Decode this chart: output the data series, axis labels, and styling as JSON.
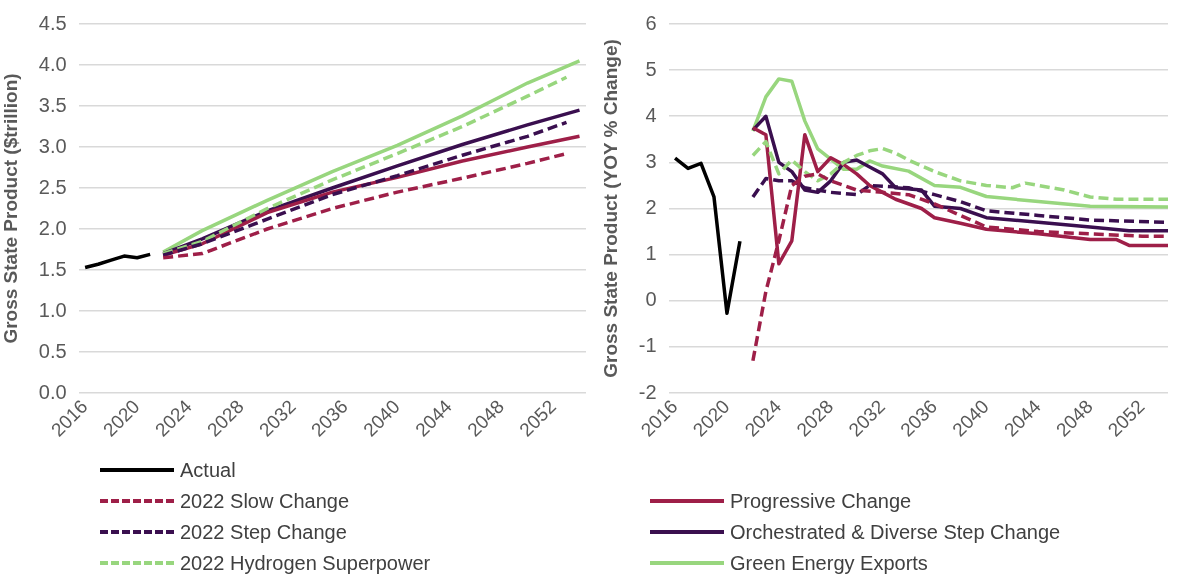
{
  "chart_data": [
    {
      "type": "line",
      "ylabel": "Gross State Product ($trillion)",
      "xlim": [
        2015.5,
        2054.5
      ],
      "xticks": [
        2016,
        2020,
        2024,
        2028,
        2032,
        2036,
        2040,
        2044,
        2048,
        2052
      ],
      "ylim": [
        0,
        4.5
      ],
      "yticks": [
        {
          "value": 0,
          "label": "0.0"
        },
        0.5,
        {
          "value": 1,
          "label": "1.0"
        },
        1.5,
        {
          "value": 2,
          "label": "2.0"
        },
        2.5,
        {
          "value": 3,
          "label": "3.0"
        },
        3.5,
        {
          "value": 4,
          "label": "4.0"
        },
        4.5
      ],
      "grid": "y",
      "legend": "bottom",
      "marker": "none",
      "series": [
        {
          "name": "Actual",
          "color": "#000000",
          "line_style": "solid",
          "x": [
            2016,
            2017,
            2018,
            2019,
            2020,
            2021
          ],
          "values": [
            1.53,
            1.57,
            1.62,
            1.67,
            1.65,
            1.69
          ]
        },
        {
          "name": "2022 Slow Change",
          "color": "#9e1f48",
          "line_style": "dashed",
          "x": [
            2022,
            2025,
            2030,
            2035,
            2040,
            2045,
            2050,
            2053
          ],
          "values": [
            1.65,
            1.7,
            2.0,
            2.25,
            2.45,
            2.62,
            2.8,
            2.92
          ]
        },
        {
          "name": "2022 Step Change",
          "color": "#3a0f4f",
          "line_style": "dashed",
          "x": [
            2022,
            2025,
            2030,
            2035,
            2040,
            2045,
            2050,
            2053
          ],
          "values": [
            1.68,
            1.82,
            2.12,
            2.42,
            2.65,
            2.9,
            3.13,
            3.3
          ]
        },
        {
          "name": "2022 Hydrogen Superpower",
          "color": "#98d67e",
          "line_style": "dashed",
          "x": [
            2022,
            2025,
            2030,
            2035,
            2040,
            2045,
            2050,
            2053
          ],
          "values": [
            1.7,
            1.85,
            2.25,
            2.6,
            2.92,
            3.25,
            3.62,
            3.85
          ]
        },
        {
          "name": "Progressive Change",
          "color": "#9e1f48",
          "line_style": "solid",
          "x": [
            2022,
            2025,
            2030,
            2035,
            2040,
            2045,
            2050,
            2054
          ],
          "values": [
            1.68,
            1.82,
            2.2,
            2.45,
            2.63,
            2.83,
            3.0,
            3.13
          ]
        },
        {
          "name": "Orchestrated & Diverse Step Change",
          "color": "#3a0f4f",
          "line_style": "solid",
          "x": [
            2022,
            2025,
            2030,
            2035,
            2040,
            2045,
            2050,
            2054
          ],
          "values": [
            1.7,
            1.88,
            2.22,
            2.5,
            2.77,
            3.03,
            3.27,
            3.45
          ]
        },
        {
          "name": "Green Energy Exports",
          "color": "#98d67e",
          "line_style": "solid",
          "x": [
            2022,
            2025,
            2030,
            2035,
            2040,
            2045,
            2050,
            2054
          ],
          "values": [
            1.72,
            1.98,
            2.35,
            2.7,
            3.02,
            3.38,
            3.78,
            4.05
          ]
        }
      ]
    },
    {
      "type": "line",
      "ylabel": "Gross State Product (YOY % Change)",
      "xlim": [
        2015.5,
        2054
      ],
      "xticks": [
        2016,
        2020,
        2024,
        2028,
        2032,
        2036,
        2040,
        2044,
        2048,
        2052
      ],
      "ylim": [
        -2,
        6
      ],
      "yticks": [
        -2,
        -1,
        0,
        1,
        2,
        3,
        4,
        5,
        6
      ],
      "grid": "y",
      "marker": "none",
      "series": [
        {
          "color": "#000000",
          "line_style": "solid",
          "x": [
            2016,
            2017,
            2018,
            2019,
            2020,
            2021
          ],
          "values": [
            3.09,
            2.87,
            2.98,
            2.25,
            -0.27,
            1.29
          ]
        },
        {
          "color": "#9e1f48",
          "line_style": "dashed",
          "x": [
            2022,
            2023,
            2024,
            2025,
            2026,
            2027,
            2028,
            2030,
            2032,
            2034,
            2036,
            2038,
            2040,
            2044,
            2048,
            2052,
            2054
          ],
          "values": [
            -1.3,
            0.2,
            1.3,
            2.5,
            2.7,
            2.75,
            2.6,
            2.4,
            2.35,
            2.3,
            2.1,
            1.85,
            1.6,
            1.5,
            1.45,
            1.4,
            1.4
          ]
        },
        {
          "color": "#3a0f4f",
          "line_style": "dashed",
          "x": [
            2022,
            2023,
            2024,
            2025,
            2026,
            2028,
            2030,
            2031,
            2034,
            2036,
            2038,
            2040,
            2044,
            2048,
            2054
          ],
          "values": [
            2.25,
            2.65,
            2.6,
            2.6,
            2.45,
            2.35,
            2.3,
            2.5,
            2.45,
            2.3,
            2.15,
            1.95,
            1.85,
            1.75,
            1.7
          ]
        },
        {
          "color": "#98d67e",
          "line_style": "dashed",
          "x": [
            2022,
            2023,
            2024,
            2025,
            2026,
            2027,
            2028,
            2029,
            2030,
            2031,
            2032,
            2033,
            2034,
            2036,
            2038,
            2040,
            2042,
            2043,
            2046,
            2048,
            2050,
            2054
          ],
          "values": [
            3.15,
            3.45,
            2.75,
            3.05,
            2.8,
            2.6,
            2.75,
            3.0,
            3.15,
            3.25,
            3.3,
            3.2,
            3.05,
            2.8,
            2.6,
            2.5,
            2.45,
            2.55,
            2.4,
            2.25,
            2.2,
            2.2
          ]
        },
        {
          "color": "#9e1f48",
          "line_style": "solid",
          "x": [
            2022,
            2023,
            2024,
            2025,
            2026,
            2027,
            2028,
            2029,
            2030,
            2031,
            2032,
            2033,
            2035,
            2036,
            2038,
            2040,
            2044,
            2048,
            2050,
            2051,
            2054
          ],
          "values": [
            3.75,
            3.6,
            0.8,
            1.3,
            3.6,
            2.8,
            3.1,
            2.95,
            2.75,
            2.5,
            2.35,
            2.2,
            2.0,
            1.8,
            1.68,
            1.55,
            1.45,
            1.33,
            1.33,
            1.2,
            1.2
          ]
        },
        {
          "color": "#3a0f4f",
          "line_style": "solid",
          "x": [
            2022,
            2023,
            2024,
            2025,
            2026,
            2027,
            2028,
            2029,
            2030,
            2031,
            2032,
            2033,
            2035,
            2036,
            2038,
            2040,
            2044,
            2048,
            2051,
            2054
          ],
          "values": [
            3.7,
            4.0,
            3.0,
            2.8,
            2.4,
            2.35,
            2.6,
            3.0,
            3.05,
            2.9,
            2.75,
            2.45,
            2.4,
            2.05,
            2.0,
            1.8,
            1.7,
            1.6,
            1.52,
            1.52
          ]
        },
        {
          "color": "#98d67e",
          "line_style": "solid",
          "x": [
            2022,
            2023,
            2024,
            2025,
            2026,
            2027,
            2028,
            2029,
            2030,
            2031,
            2032,
            2034,
            2036,
            2038,
            2040,
            2044,
            2048,
            2054
          ],
          "values": [
            3.68,
            4.42,
            4.81,
            4.76,
            3.9,
            3.29,
            3.07,
            2.85,
            2.85,
            3.03,
            2.92,
            2.81,
            2.5,
            2.46,
            2.26,
            2.15,
            2.05,
            2.03
          ]
        }
      ]
    }
  ]
}
